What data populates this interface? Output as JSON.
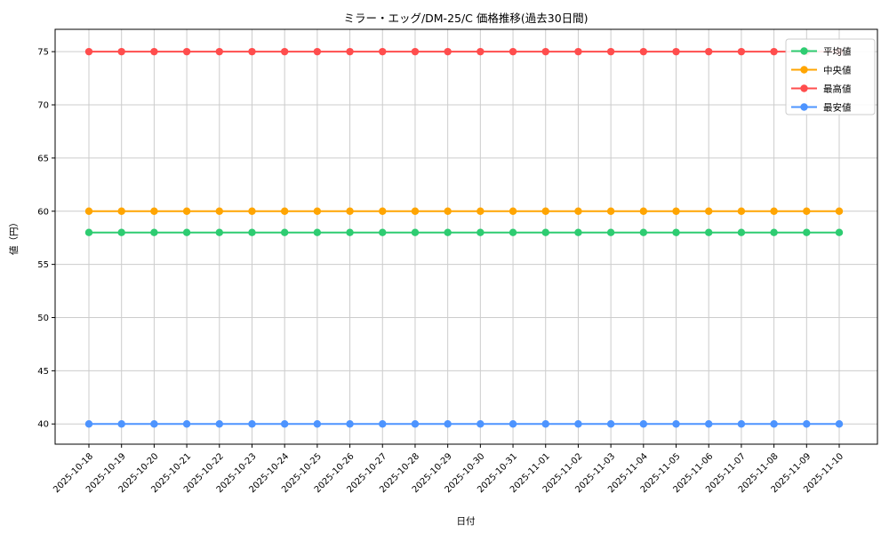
{
  "chart_data": {
    "type": "line",
    "title": "ミラー・エッグ/DM-25/C 価格推移(過去30日間)",
    "xlabel": "日付",
    "ylabel": "値（円）",
    "x": [
      "2025-10-18",
      "2025-10-19",
      "2025-10-20",
      "2025-10-21",
      "2025-10-22",
      "2025-10-23",
      "2025-10-24",
      "2025-10-25",
      "2025-10-26",
      "2025-10-27",
      "2025-10-28",
      "2025-10-29",
      "2025-10-30",
      "2025-10-31",
      "2025-11-01",
      "2025-11-02",
      "2025-11-03",
      "2025-11-04",
      "2025-11-05",
      "2025-11-06",
      "2025-11-07",
      "2025-11-08",
      "2025-11-09",
      "2025-11-10"
    ],
    "series": [
      {
        "name": "平均値",
        "color": "#2ecc71",
        "values": [
          58,
          58,
          58,
          58,
          58,
          58,
          58,
          58,
          58,
          58,
          58,
          58,
          58,
          58,
          58,
          58,
          58,
          58,
          58,
          58,
          58,
          58,
          58,
          58
        ]
      },
      {
        "name": "中央値",
        "color": "#ffa502",
        "values": [
          60,
          60,
          60,
          60,
          60,
          60,
          60,
          60,
          60,
          60,
          60,
          60,
          60,
          60,
          60,
          60,
          60,
          60,
          60,
          60,
          60,
          60,
          60,
          60
        ]
      },
      {
        "name": "最高値",
        "color": "#ff4d4d",
        "values": [
          75,
          75,
          75,
          75,
          75,
          75,
          75,
          75,
          75,
          75,
          75,
          75,
          75,
          75,
          75,
          75,
          75,
          75,
          75,
          75,
          75,
          75,
          75,
          75
        ]
      },
      {
        "name": "最安値",
        "color": "#4d94ff",
        "values": [
          40,
          40,
          40,
          40,
          40,
          40,
          40,
          40,
          40,
          40,
          40,
          40,
          40,
          40,
          40,
          40,
          40,
          40,
          40,
          40,
          40,
          40,
          40,
          40
        ]
      }
    ],
    "yticks": [
      40,
      45,
      50,
      55,
      60,
      65,
      70,
      75
    ],
    "ylim": [
      38.1,
      77.1
    ],
    "grid": true,
    "grid_color": "#cccccc",
    "legend_position": "upper right",
    "x_tick_rotation_deg": 45
  }
}
